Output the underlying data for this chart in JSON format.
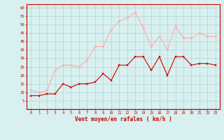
{
  "x": [
    0,
    1,
    2,
    3,
    4,
    5,
    6,
    7,
    8,
    9,
    10,
    11,
    12,
    13,
    14,
    15,
    16,
    17,
    18,
    19,
    20,
    21,
    22,
    23
  ],
  "vent_moyen": [
    8,
    8,
    9,
    9,
    15,
    13,
    15,
    15,
    16,
    21,
    17,
    26,
    26,
    31,
    31,
    23,
    31,
    20,
    31,
    31,
    26,
    27,
    27,
    26
  ],
  "rafales": [
    11,
    10,
    11,
    23,
    26,
    26,
    25,
    29,
    37,
    37,
    47,
    52,
    54,
    57,
    48,
    37,
    43,
    35,
    49,
    42,
    42,
    45,
    43,
    43
  ],
  "color_moyen": "#cc0000",
  "color_rafales": "#ffaaaa",
  "bg_color": "#d8f0f0",
  "grid_color": "#b0d4d4",
  "xlabel": "Vent moyen/en rafales ( km/h )",
  "xlabel_color": "#cc0000",
  "ylim": [
    0,
    62
  ],
  "yticks": [
    5,
    10,
    15,
    20,
    25,
    30,
    35,
    40,
    45,
    50,
    55,
    60
  ],
  "tick_color": "#cc0000"
}
